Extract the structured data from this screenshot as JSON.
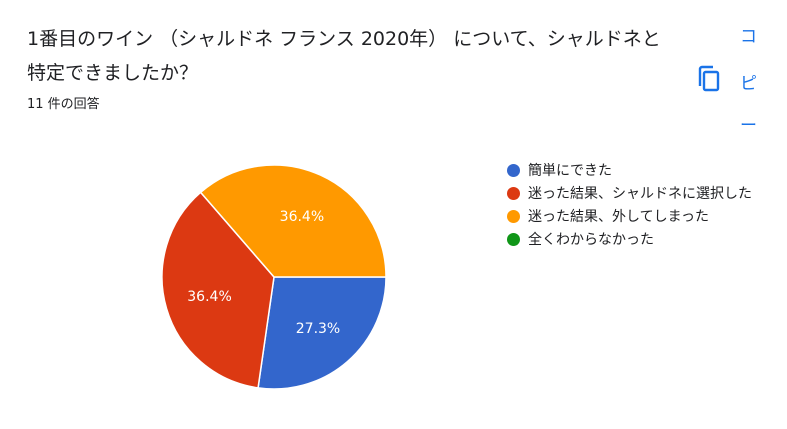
{
  "question": {
    "title": "1番目のワイン （シャルドネ フランス 2020年） について、シャルドネと特定できましたか？",
    "responses": "11 件の回答"
  },
  "side_menu": {
    "copy_icon": "copy-icon",
    "copy_text_1": "コ",
    "copy_text_2": "ピ",
    "copy_text_3": "ー"
  },
  "colors": {
    "blue": "#3366cc",
    "red": "#dc3912",
    "orange": "#ff9900",
    "green": "#109618"
  },
  "chart_data": {
    "type": "pie",
    "categories": [
      "簡単にできた",
      "迷った結果、シャルドネに選択した",
      "迷った結果、外してしまった",
      "全くわからなかった"
    ],
    "values": [
      27.3,
      36.4,
      36.4,
      0
    ],
    "labels": [
      "27.3%",
      "36.4%",
      "36.4%",
      ""
    ],
    "colors": [
      "#3366cc",
      "#dc3912",
      "#ff9900",
      "#109618"
    ],
    "legend_position": "right"
  }
}
